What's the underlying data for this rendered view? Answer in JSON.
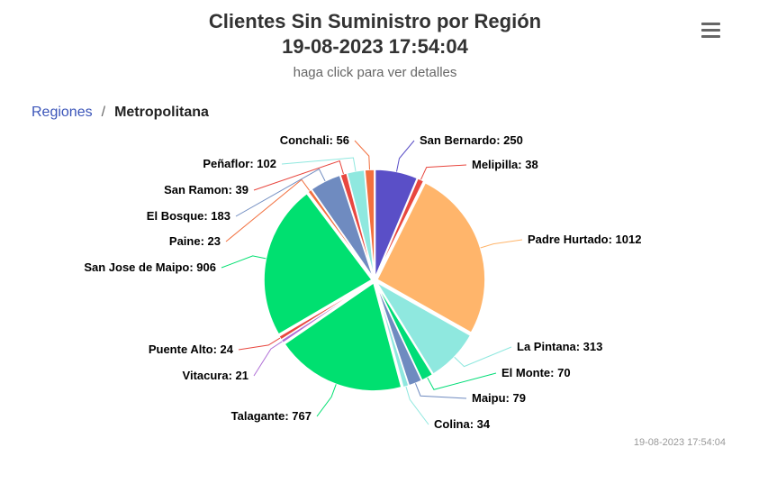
{
  "title_line1": "Clientes Sin Suministro por Región",
  "title_line2": "19-08-2023 17:54:04",
  "subtitle": "haga click para ver detalles",
  "menu_icon": "hamburger-menu-icon",
  "breadcrumb": {
    "parent": "Regiones",
    "separator": "/",
    "current": "Metropolitana"
  },
  "credits": "19-08-2023 17:54:04",
  "chart_data": {
    "type": "pie",
    "title": "Clientes Sin Suministro por Región",
    "subtitle": "haga click para ver detalles",
    "slices": [
      {
        "name": "San Bernardo",
        "value": 250,
        "color": "#5a4fc7"
      },
      {
        "name": "Melipilla",
        "value": 38,
        "color": "#e8473f"
      },
      {
        "name": "Padre Hurtado",
        "value": 1012,
        "color": "#ffb56b"
      },
      {
        "name": "La Pintana",
        "value": 313,
        "color": "#8fe8df"
      },
      {
        "name": "El Monte",
        "value": 70,
        "color": "#00dd77"
      },
      {
        "name": "Maipu",
        "value": 79,
        "color": "#6f8bc0"
      },
      {
        "name": "Colina",
        "value": 34,
        "color": "#8fe8df"
      },
      {
        "name": "Talagante",
        "value": 767,
        "color": "#00e070"
      },
      {
        "name": "Vitacura",
        "value": 21,
        "color": "#b06fd6"
      },
      {
        "name": "Puente Alto",
        "value": 24,
        "color": "#e8473f"
      },
      {
        "name": "San Jose de Maipo",
        "value": 906,
        "color": "#00e070"
      },
      {
        "name": "Paine",
        "value": 23,
        "color": "#f2703f"
      },
      {
        "name": "El Bosque",
        "value": 183,
        "color": "#6f8bc0"
      },
      {
        "name": "San Ramon",
        "value": 39,
        "color": "#e8473f"
      },
      {
        "name": "Peñaflor",
        "value": 102,
        "color": "#8fe8df"
      },
      {
        "name": "Conchali",
        "value": 56,
        "color": "#f2703f"
      }
    ]
  }
}
